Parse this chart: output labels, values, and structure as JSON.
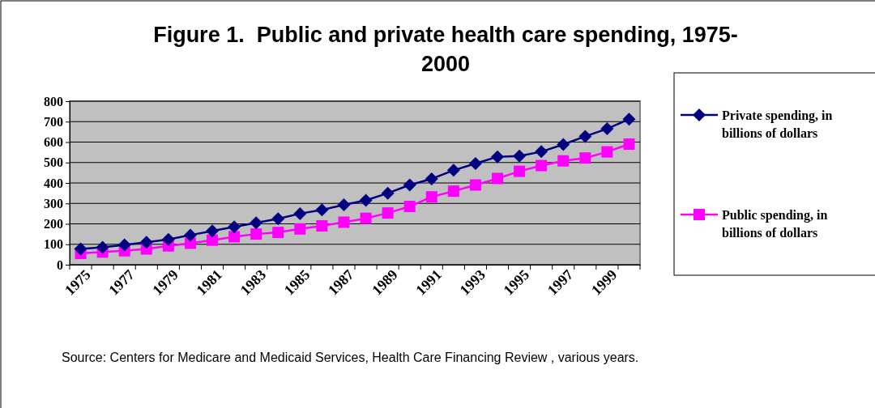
{
  "chart_data": {
    "type": "line",
    "title": "Figure 1.  Public and private health care spending, 1975-2000",
    "categories": [
      "1975",
      null,
      "1977",
      null,
      "1979",
      null,
      "1981",
      null,
      "1983",
      null,
      "1985",
      null,
      "1987",
      null,
      "1989",
      null,
      "1991",
      null,
      "1993",
      null,
      "1995",
      null,
      "1997",
      null,
      "1999",
      null
    ],
    "series": [
      {
        "name": "Private spending, in billions of dollars",
        "color": "#000080",
        "marker": "diamond",
        "values": [
          77,
          85,
          97,
          110,
          124,
          145,
          165,
          185,
          205,
          225,
          250,
          268,
          293,
          315,
          350,
          390,
          420,
          462,
          495,
          528,
          532,
          553,
          588,
          628,
          665,
          712
        ]
      },
      {
        "name": "Public spending, in billions of dollars",
        "color": "#ff00ff",
        "marker": "square",
        "values": [
          55,
          62,
          68,
          77,
          92,
          105,
          120,
          137,
          150,
          158,
          175,
          190,
          208,
          227,
          253,
          285,
          332,
          360,
          390,
          422,
          457,
          485,
          508,
          522,
          552,
          590
        ]
      }
    ],
    "ylim": [
      0,
      800
    ],
    "yticks": [
      0,
      100,
      200,
      300,
      400,
      500,
      600,
      700,
      800
    ],
    "grid": "y",
    "legend": "right",
    "annotations": [
      "Source: Centers for Medicare and Medicaid Services, Health Care Financing Review , various years."
    ]
  }
}
